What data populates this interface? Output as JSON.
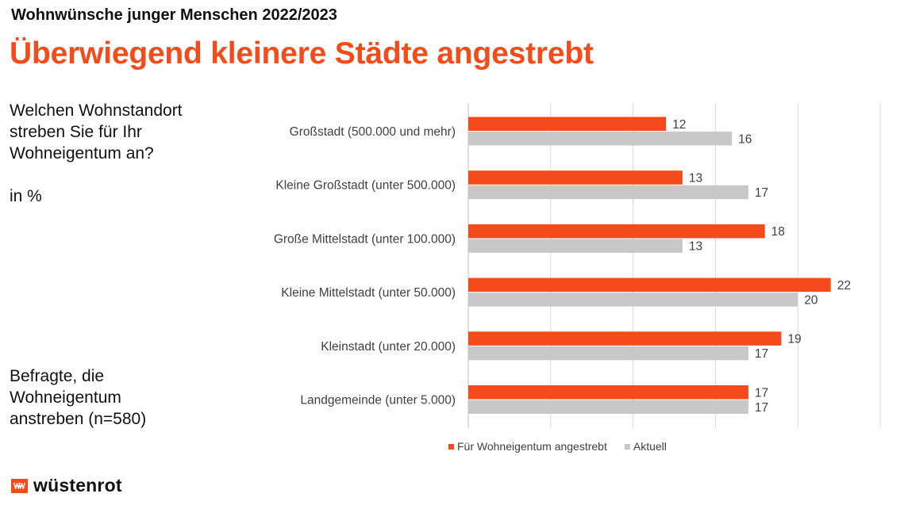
{
  "header": {
    "supertitle": "Wohnwünsche junger Menschen 2022/2023",
    "title": "Überwiegend kleinere Städte angestrebt"
  },
  "side": {
    "question": "Welchen Wohnstandort streben Sie für Ihr Wohneigentum an?",
    "unit": "in %",
    "sample": "Befragte, die Wohneigentum anstreben (n=580)"
  },
  "brand": {
    "name": "wüstenrot",
    "color": "#f34b1a"
  },
  "chart_data": {
    "type": "bar",
    "orientation": "horizontal",
    "categories": [
      "Großstadt (500.000 und mehr)",
      "Kleine Großstadt (unter 500.000)",
      "Große Mittelstadt (unter 100.000)",
      "Kleine Mittelstadt (unter 50.000)",
      "Kleinstadt (unter 20.000)",
      "Landgemeinde (unter 5.000)"
    ],
    "series": [
      {
        "name": "Für Wohneigentum angestrebt",
        "color": "#f34b1a",
        "values": [
          12,
          13,
          18,
          22,
          19,
          17
        ]
      },
      {
        "name": "Aktuell",
        "color": "#c8c8c8",
        "values": [
          16,
          17,
          13,
          20,
          17,
          17
        ]
      }
    ],
    "xlim": [
      0,
      25
    ],
    "grid": true,
    "legend_position": "bottom",
    "data_labels": true
  }
}
